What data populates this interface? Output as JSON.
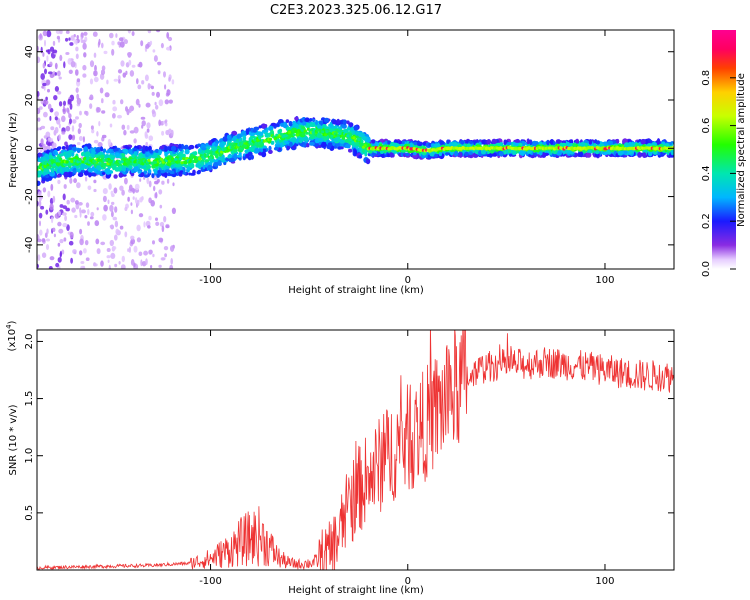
{
  "title": "C2E3.2023.325.06.12.G17",
  "chart_data": [
    {
      "type": "heatmap",
      "xlabel": "Height of straight line (km)",
      "ylabel": "Frequency (Hz)",
      "xlim": [
        -188,
        135
      ],
      "ylim": [
        -50,
        49
      ],
      "x_ticks": [
        -100,
        0,
        100
      ],
      "x_tick_labels": [
        "-100",
        "0",
        "100"
      ],
      "y_ticks": [
        -40,
        -20,
        0,
        20,
        40
      ],
      "y_tick_labels": [
        "-40",
        "-20",
        "0",
        "20",
        "40"
      ],
      "colorbar": {
        "label": "Normalized spectral amplitude",
        "range": [
          0,
          1
        ],
        "ticks": [
          0.0,
          0.2,
          0.4,
          0.6,
          0.8
        ],
        "tick_labels": [
          "0.0",
          "0.2",
          "0.4",
          "0.6",
          "0.8"
        ]
      },
      "ridge": {
        "x": [
          -188,
          -180,
          -170,
          -160,
          -150,
          -140,
          -130,
          -120,
          -110,
          -100,
          -90,
          -80,
          -70,
          -60,
          -50,
          -40,
          -30,
          -25,
          -20,
          -10,
          0,
          10,
          20,
          40,
          60,
          80,
          100,
          120,
          135
        ],
        "frequency": [
          -9,
          -6,
          -5,
          -5,
          -6,
          -5,
          -6,
          -5,
          -5,
          -3,
          0,
          2,
          4,
          6,
          7,
          6,
          5,
          3,
          0,
          0,
          0,
          -1,
          0,
          0,
          0,
          0,
          0,
          0,
          0
        ]
      },
      "grid": false
    },
    {
      "type": "line",
      "xlabel": "Height of straight line (km)",
      "ylabel": "SNR (10 * v/v)",
      "y_multiplier_label": "(x10",
      "y_multiplier_exp": "4",
      "y_multiplier_close": ")",
      "xlim": [
        -188,
        135
      ],
      "ylim": [
        0,
        2.1
      ],
      "x_ticks": [
        -100,
        0,
        100
      ],
      "x_tick_labels": [
        "-100",
        "0",
        "100"
      ],
      "y_ticks": [
        0.5,
        1.0,
        1.5,
        2.0
      ],
      "y_tick_labels": [
        "0.5",
        "1.0",
        "1.5",
        "2.0"
      ],
      "series": [
        {
          "color": "#ee3333",
          "envelope": {
            "x": [
              -188,
              -160,
              -130,
              -110,
              -100,
              -95,
              -90,
              -85,
              -80,
              -75,
              -70,
              -65,
              -60,
              -55,
              -50,
              -45,
              -40,
              -35,
              -30,
              -25,
              -20,
              -15,
              -10,
              -5,
              0,
              5,
              10,
              15,
              20,
              25,
              30,
              40,
              50,
              60,
              70,
              80,
              90,
              100,
              110,
              120,
              130,
              135
            ],
            "mean": [
              0.02,
              0.03,
              0.04,
              0.06,
              0.1,
              0.14,
              0.18,
              0.24,
              0.28,
              0.3,
              0.2,
              0.1,
              0.06,
              0.05,
              0.06,
              0.08,
              0.14,
              0.3,
              0.55,
              0.7,
              0.8,
              0.9,
              1.0,
              1.1,
              1.15,
              1.2,
              1.3,
              1.4,
              1.5,
              1.6,
              1.7,
              1.78,
              1.8,
              1.8,
              1.82,
              1.8,
              1.78,
              1.75,
              1.72,
              1.7,
              1.7,
              1.68
            ]
          }
        }
      ],
      "grid": false
    }
  ]
}
